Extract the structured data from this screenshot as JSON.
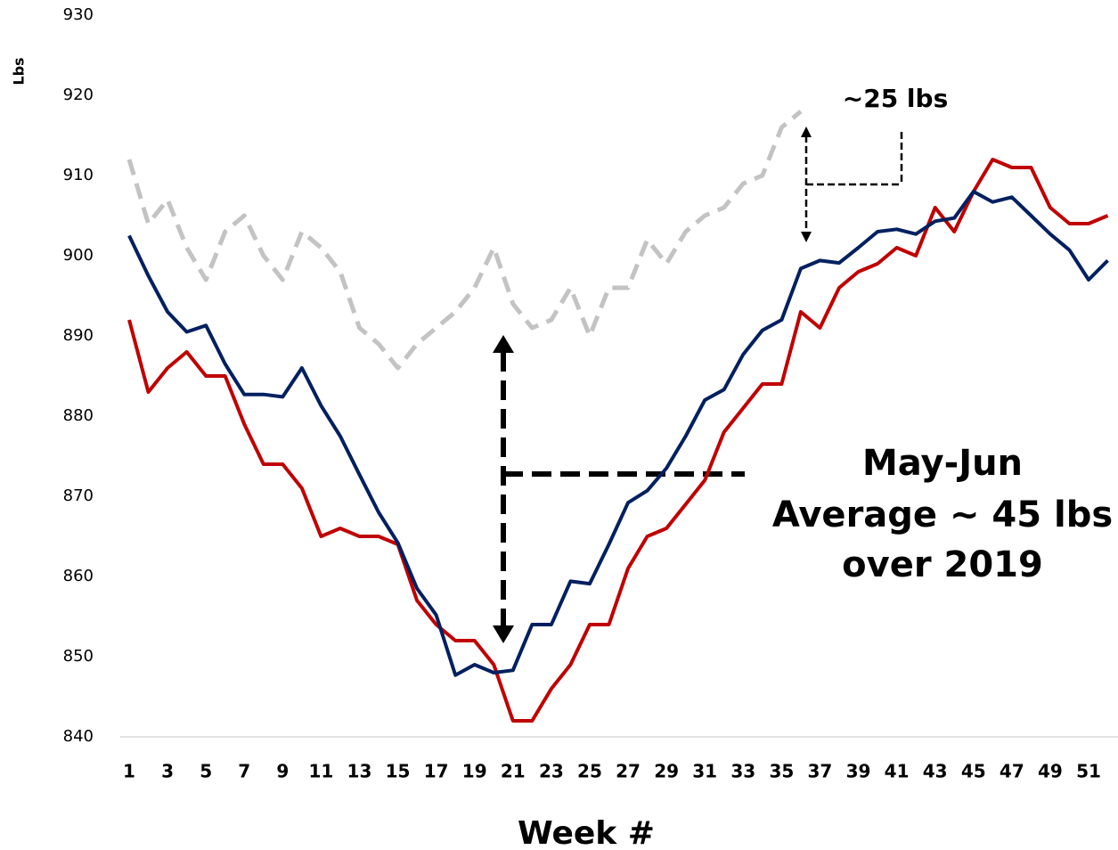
{
  "chart_data": {
    "type": "line",
    "y_label": "Lbs",
    "x_label": "Week #",
    "annotations": [
      "~25 lbs",
      "May-Jun",
      "Average ~ 45 lbs",
      "over 2019"
    ],
    "categories": [
      "1",
      null,
      "3",
      null,
      "5",
      null,
      "7",
      null,
      "9",
      null,
      "11",
      null,
      "13",
      null,
      "15",
      null,
      "17",
      null,
      "19",
      null,
      "21",
      null,
      "23",
      null,
      "25",
      null,
      "27",
      null,
      "29",
      null,
      "31",
      null,
      "33",
      null,
      "35",
      null,
      "37",
      null,
      "39",
      null,
      "41",
      null,
      "43",
      null,
      "45",
      null,
      "47",
      null,
      "49",
      null,
      "51",
      null
    ],
    "series": [
      {
        "color": "#c3c3c3",
        "dashed": true,
        "values": [
          912,
          904,
          907,
          901,
          897,
          903,
          905,
          900,
          897,
          903,
          901,
          898,
          891,
          889,
          886,
          889,
          891,
          893,
          896,
          901,
          894,
          891,
          892,
          896,
          890,
          896,
          896,
          902,
          899,
          903,
          905,
          906,
          909,
          910,
          916,
          918,
          null,
          null,
          null,
          null,
          null,
          null,
          null,
          null,
          null,
          null,
          null,
          null,
          null,
          null,
          null,
          null
        ]
      },
      {
        "color": "#c00000",
        "values": [
          892,
          883,
          886,
          888,
          885,
          885,
          879,
          874,
          874,
          871,
          865,
          866,
          865,
          865,
          864,
          857,
          854,
          852,
          852,
          849,
          842,
          842,
          846,
          849,
          854,
          854,
          861,
          865,
          866,
          869,
          872,
          878,
          881,
          884,
          884,
          893,
          891,
          896,
          898,
          899,
          901,
          900,
          906,
          903,
          908,
          912,
          911,
          911,
          906,
          904,
          904,
          905
        ]
      },
      {
        "color": "#002060",
        "values": [
          902.5,
          897.5,
          893,
          890.5,
          891.3,
          886.5,
          882.7,
          882.7,
          882.4,
          886,
          881.3,
          877.5,
          872.7,
          868,
          864.2,
          858.5,
          855.2,
          847.7,
          849,
          848,
          848.3,
          854,
          854,
          859.4,
          859.1,
          864,
          869.2,
          870.7,
          873.5,
          877.5,
          882,
          883.3,
          887.7,
          890.7,
          892,
          898.4,
          899.4,
          899.1,
          901,
          903,
          903.3,
          902.7,
          904.3,
          904.7,
          908,
          906.7,
          907.3,
          905,
          902.7,
          900.7,
          897,
          899.4
        ]
      }
    ],
    "ylim": [
      840,
      930
    ],
    "yticks": [
      840,
      850,
      860,
      870,
      880,
      890,
      900,
      910,
      920,
      930
    ],
    "grid": false
  }
}
